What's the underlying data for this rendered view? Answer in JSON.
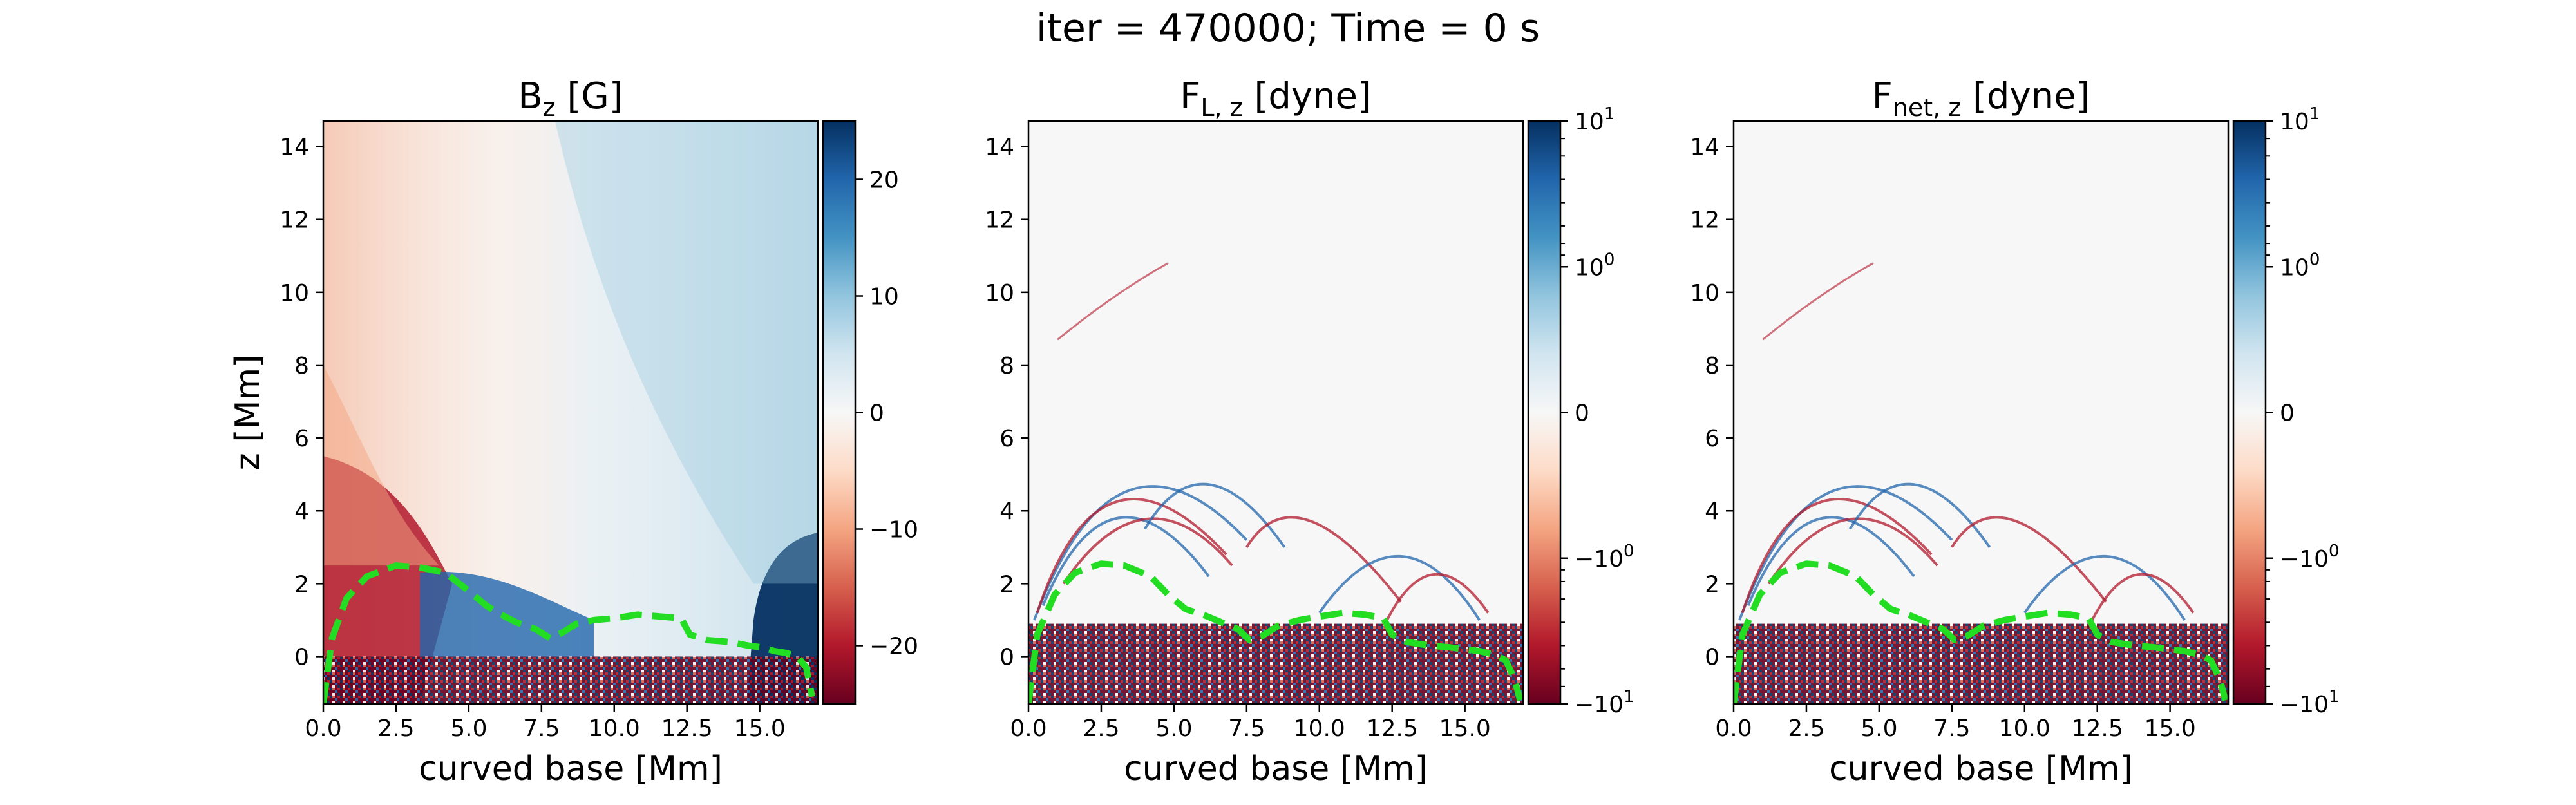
{
  "figure": {
    "suptitle": "iter = 470000; Time = 0 s"
  },
  "chart_data": [
    {
      "type": "heatmap",
      "title": {
        "main": "B",
        "sub": "z",
        "unit": " [G]"
      },
      "xlabel": "curved base [Mm]",
      "ylabel": "z [Mm]",
      "xlim": [
        0,
        17
      ],
      "ylim": [
        -1.3,
        14.7
      ],
      "xticks": [
        "0.0",
        "2.5",
        "5.0",
        "7.5",
        "10.0",
        "12.5",
        "15.0"
      ],
      "yticks": [
        "0",
        "2",
        "4",
        "6",
        "8",
        "10",
        "12",
        "14"
      ],
      "colormap": "RdBu",
      "colorbar": {
        "scale": "linear",
        "range": [
          -25,
          25
        ],
        "ticks": [
          {
            "value": 20,
            "label": "20"
          },
          {
            "value": 10,
            "label": "10"
          },
          {
            "value": 0,
            "label": "0"
          },
          {
            "value": -10,
            "label": "−10"
          },
          {
            "value": -20,
            "label": "−20"
          }
        ]
      },
      "contour": {
        "color": "#22dd22",
        "style": "dashed",
        "x": [
          0.0,
          0.3,
          0.8,
          1.5,
          2.5,
          3.3,
          4.2,
          5.0,
          5.6,
          6.0,
          6.6,
          7.3,
          7.8,
          8.2,
          8.7,
          9.3,
          10.0,
          10.8,
          11.6,
          12.3,
          12.6,
          13.2,
          14.0,
          14.6,
          15.1,
          15.5,
          15.9,
          16.3,
          16.6,
          16.8
        ],
        "y": [
          -1.3,
          0.5,
          1.6,
          2.2,
          2.5,
          2.45,
          2.3,
          1.8,
          1.4,
          1.2,
          0.95,
          0.75,
          0.5,
          0.65,
          0.9,
          1.0,
          1.05,
          1.15,
          1.1,
          1.05,
          0.6,
          0.45,
          0.4,
          0.3,
          0.25,
          0.15,
          0.1,
          0.0,
          -0.3,
          -1.1
        ]
      }
    },
    {
      "type": "heatmap",
      "title": {
        "main": "F",
        "sub": "L, z",
        "unit": " [dyne]"
      },
      "xlabel": "curved base [Mm]",
      "ylabel": "",
      "xlim": [
        0,
        17
      ],
      "ylim": [
        -1.3,
        14.7
      ],
      "xticks": [
        "0.0",
        "2.5",
        "5.0",
        "7.5",
        "10.0",
        "12.5",
        "15.0"
      ],
      "yticks": [
        "0",
        "2",
        "4",
        "6",
        "8",
        "10",
        "12",
        "14"
      ],
      "colormap": "RdBu",
      "colorbar": {
        "scale": "symlog",
        "range": [
          -10,
          10
        ],
        "ticks": [
          {
            "pos": 1.0,
            "base": "10",
            "exp": "1"
          },
          {
            "pos": 0.75,
            "base": "10",
            "exp": "0"
          },
          {
            "pos": 0.5,
            "base": "0",
            "exp": ""
          },
          {
            "pos": 0.25,
            "base": "−10",
            "exp": "0"
          },
          {
            "pos": 0.0,
            "base": "−10",
            "exp": "1"
          }
        ]
      },
      "contour": {
        "color": "#22dd22",
        "style": "dashed",
        "x": [
          0.0,
          0.3,
          0.9,
          1.6,
          2.5,
          3.3,
          4.2,
          4.8,
          5.4,
          6.0,
          6.6,
          7.2,
          7.6,
          8.0,
          8.6,
          9.3,
          10.0,
          10.8,
          11.6,
          12.2,
          12.5,
          13.0,
          13.8,
          14.5,
          15.0,
          15.5,
          16.0,
          16.4,
          16.7,
          16.9
        ],
        "y": [
          -1.3,
          0.6,
          1.7,
          2.3,
          2.55,
          2.5,
          2.2,
          1.7,
          1.3,
          1.15,
          0.95,
          0.75,
          0.45,
          0.55,
          0.85,
          1.0,
          1.1,
          1.2,
          1.15,
          1.05,
          0.6,
          0.4,
          0.3,
          0.25,
          0.2,
          0.15,
          0.05,
          -0.1,
          -0.6,
          -1.2
        ]
      }
    },
    {
      "type": "heatmap",
      "title": {
        "main": "F",
        "sub": "net, z",
        "unit": " [dyne]"
      },
      "xlabel": "curved base [Mm]",
      "ylabel": "",
      "xlim": [
        0,
        17
      ],
      "ylim": [
        -1.3,
        14.7
      ],
      "xticks": [
        "0.0",
        "2.5",
        "5.0",
        "7.5",
        "10.0",
        "12.5",
        "15.0"
      ],
      "yticks": [
        "0",
        "2",
        "4",
        "6",
        "8",
        "10",
        "12",
        "14"
      ],
      "colormap": "RdBu",
      "colorbar": {
        "scale": "symlog",
        "range": [
          -10,
          10
        ],
        "ticks": [
          {
            "pos": 1.0,
            "base": "10",
            "exp": "1"
          },
          {
            "pos": 0.75,
            "base": "10",
            "exp": "0"
          },
          {
            "pos": 0.5,
            "base": "0",
            "exp": ""
          },
          {
            "pos": 0.25,
            "base": "−10",
            "exp": "0"
          },
          {
            "pos": 0.0,
            "base": "−10",
            "exp": "1"
          }
        ]
      },
      "contour": {
        "color": "#22dd22",
        "style": "dashed",
        "x": [
          0.0,
          0.3,
          0.9,
          1.6,
          2.5,
          3.3,
          4.2,
          4.8,
          5.4,
          6.0,
          6.6,
          7.2,
          7.6,
          8.0,
          8.6,
          9.3,
          10.0,
          10.8,
          11.6,
          12.2,
          12.5,
          13.0,
          13.8,
          14.5,
          15.0,
          15.5,
          16.0,
          16.4,
          16.7,
          16.9
        ],
        "y": [
          -1.3,
          0.6,
          1.7,
          2.3,
          2.55,
          2.5,
          2.2,
          1.7,
          1.3,
          1.15,
          0.95,
          0.75,
          0.45,
          0.55,
          0.85,
          1.0,
          1.1,
          1.2,
          1.15,
          1.05,
          0.6,
          0.4,
          0.3,
          0.25,
          0.2,
          0.15,
          0.05,
          -0.1,
          -0.6,
          -1.2
        ]
      }
    }
  ]
}
